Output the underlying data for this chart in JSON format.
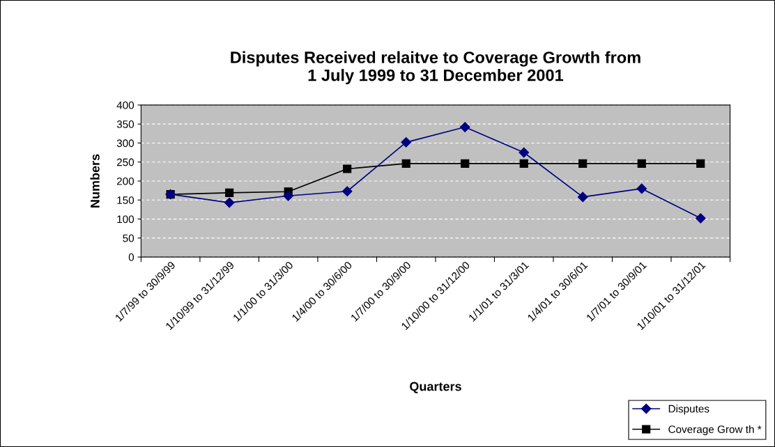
{
  "chart_data": {
    "type": "line",
    "title": "Disputes Received relaitve to Coverage Growth from\n1 July 1999 to 31 December 2001",
    "xlabel": "Quarters",
    "ylabel": "Numbers",
    "categories": [
      "1/7/99 to 30/9/99",
      "1/10/99 to 31/12/99",
      "1/1/00 to 31/3/00",
      "1/4/00 to 30/6/00",
      "1/7/00 to 30/9/00",
      "1/10/00 to 31/12/00",
      "1/1/01 to 31/3/01",
      "1/4/01 to 30/6/01",
      "1/7/01 to 30/9/01",
      "1/10/01 to 31/12/01"
    ],
    "series": [
      {
        "name": "Disputes",
        "color": "#000080",
        "marker": "diamond",
        "values": [
          165,
          143,
          161,
          173,
          302,
          342,
          275,
          158,
          180,
          102
        ]
      },
      {
        "name": "Coverage Grow th *",
        "color": "#000000",
        "marker": "square",
        "values": [
          165,
          169,
          172,
          232,
          246,
          246,
          246,
          246,
          246,
          246
        ]
      }
    ],
    "ylim": [
      0,
      400
    ],
    "yticks": [
      0,
      50,
      100,
      150,
      200,
      250,
      300,
      350,
      400
    ],
    "grid": "y",
    "legend": "bottom right",
    "line_style": "solid"
  }
}
